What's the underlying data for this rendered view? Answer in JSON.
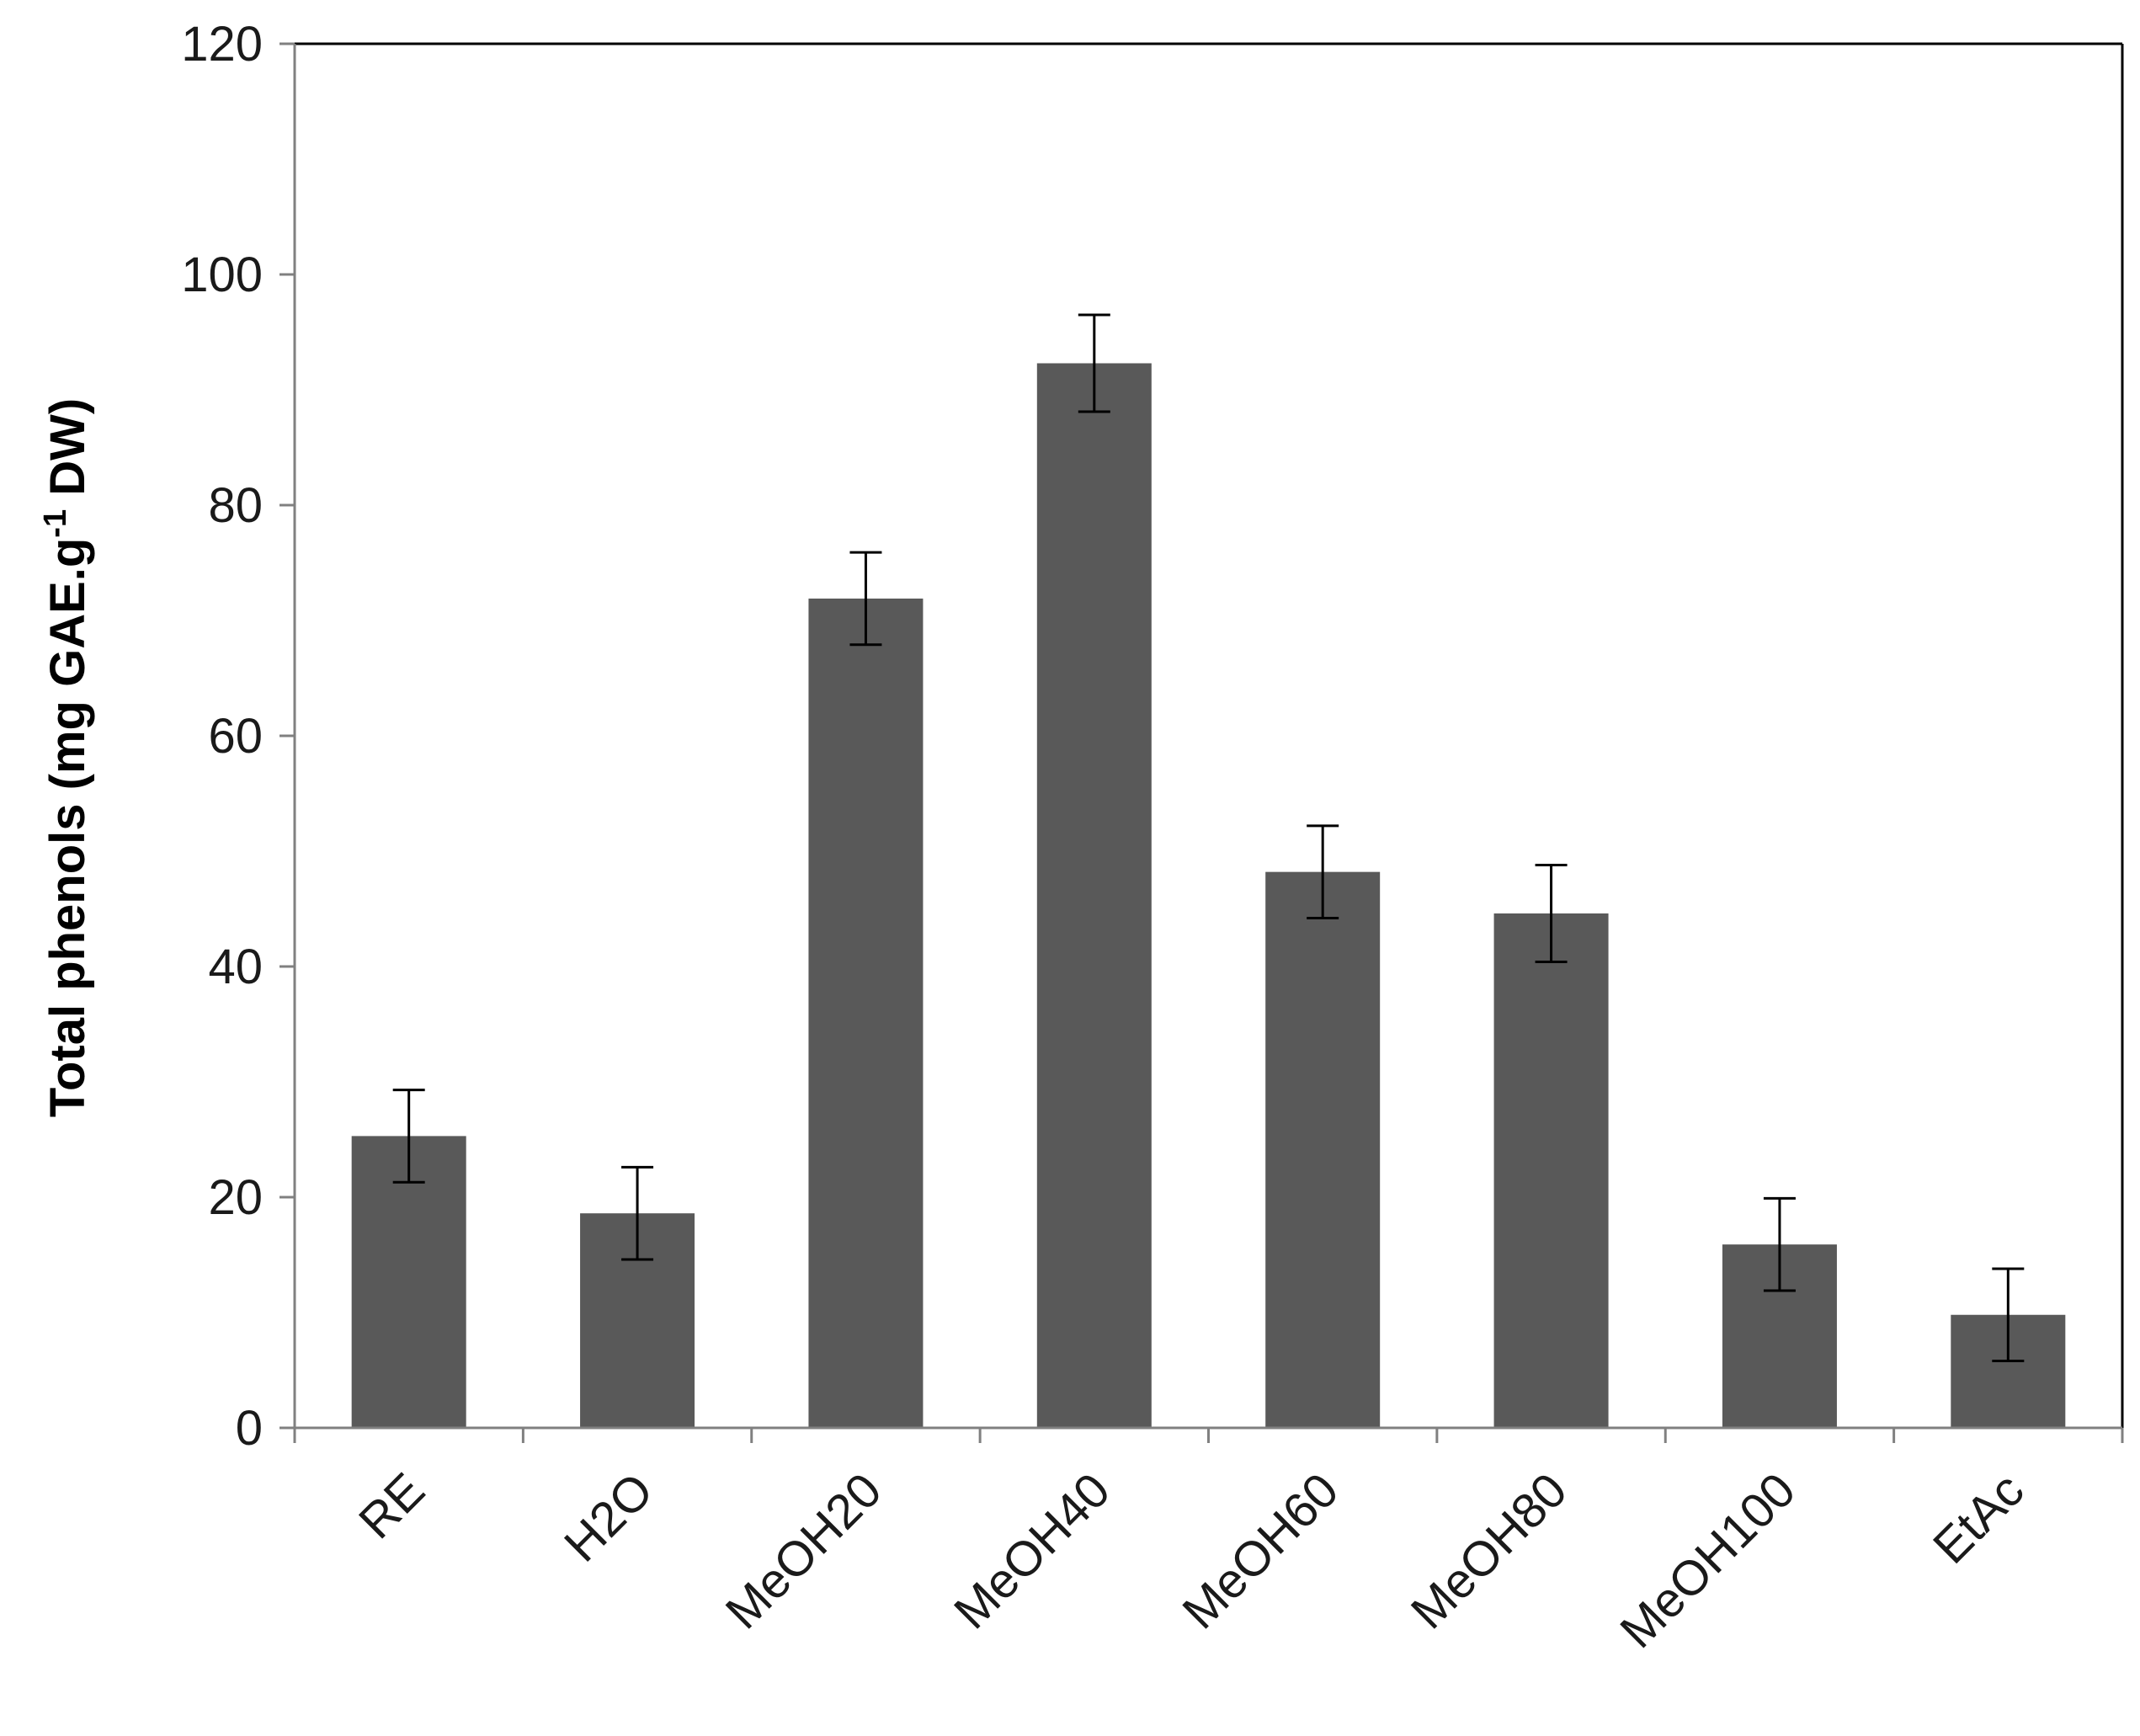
{
  "chart_data": {
    "type": "bar",
    "title": "",
    "xlabel": "",
    "ylabel_parts": {
      "before": "Total phenols (mg GAE.g",
      "sup": "-1",
      "after": " DW)"
    },
    "categories": [
      "RE",
      "H2O",
      "MeOH20",
      "MeOH40",
      "MeOH60",
      "MeOH80",
      "MeOH100",
      "EtAc"
    ],
    "values": [
      25.3,
      18.6,
      71.9,
      92.3,
      48.2,
      44.6,
      15.9,
      9.8
    ],
    "errors": [
      4.0,
      4.0,
      4.0,
      4.2,
      4.0,
      4.2,
      4.0,
      4.0
    ],
    "ylim": [
      0,
      120
    ],
    "yticks": [
      "0",
      "20",
      "40",
      "60",
      "80",
      "100",
      "120"
    ],
    "grid": false,
    "legend": "none",
    "colors": {
      "bar": "#595959",
      "axis": "#808080",
      "frame": "#000000",
      "errorbar": "#000000"
    }
  }
}
